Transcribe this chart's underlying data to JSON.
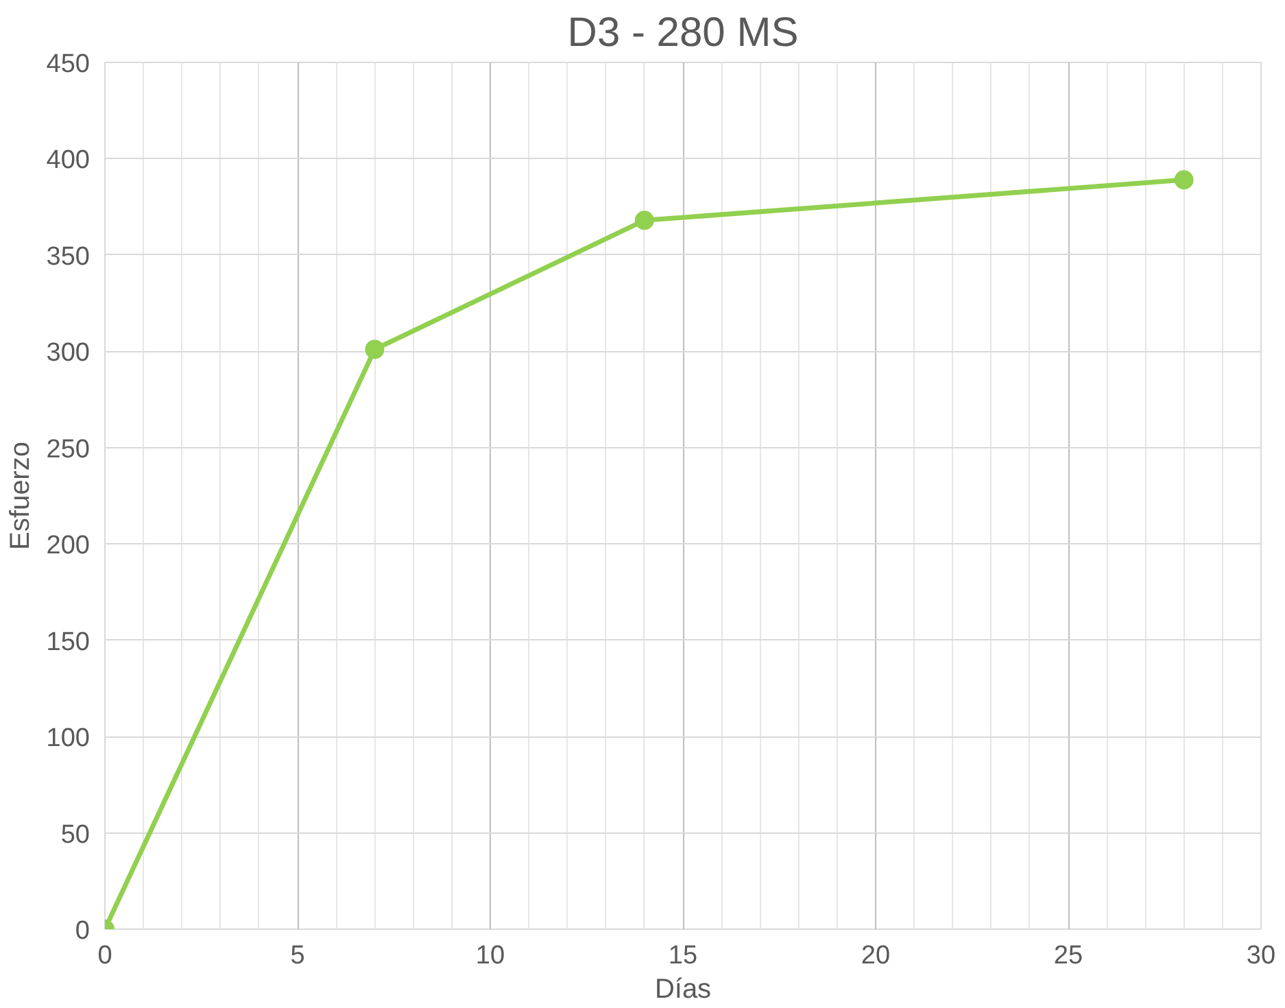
{
  "chart_data": {
    "type": "line",
    "title": "D3 - 280 MS",
    "xlabel": "Días",
    "ylabel": "Esfuerzo",
    "x": [
      0,
      7,
      14,
      28
    ],
    "series": [
      {
        "color": "#92d050",
        "values": [
          0,
          301,
          368,
          389
        ]
      }
    ],
    "xlim": [
      0,
      30
    ],
    "xticks": [
      0,
      5,
      10,
      15,
      20,
      25,
      30
    ],
    "ylim": [
      0,
      450
    ],
    "yticks": [
      0,
      50,
      100,
      150,
      200,
      250,
      300,
      350,
      400,
      450
    ],
    "grid": true,
    "marker": "circle"
  }
}
